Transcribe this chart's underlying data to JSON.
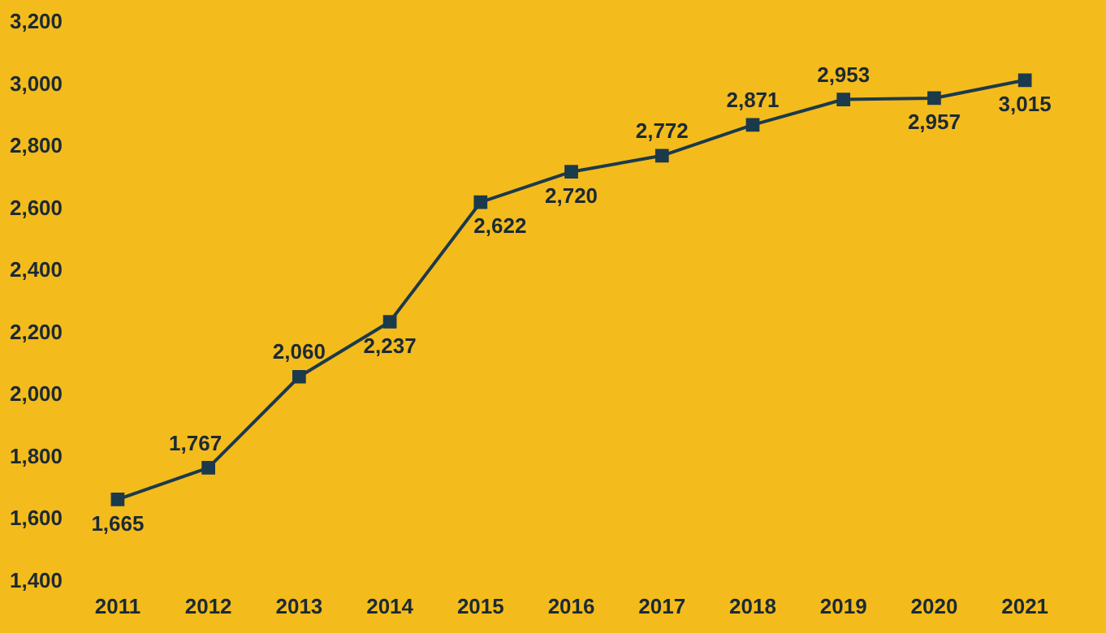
{
  "chart_data": {
    "type": "line",
    "categories": [
      "2011",
      "2012",
      "2013",
      "2014",
      "2015",
      "2016",
      "2017",
      "2018",
      "2019",
      "2020",
      "2021"
    ],
    "series": [
      {
        "color": "#1b3a4b",
        "values": [
          1665,
          1767,
          2060,
          2237,
          2622,
          2720,
          2772,
          2871,
          2953,
          2957,
          3015
        ],
        "value_labels": [
          "1,665",
          "1,767",
          "2,060",
          "2,237",
          "2,622",
          "2,720",
          "2,772",
          "2,871",
          "2,953",
          "2,957",
          "3,015"
        ]
      }
    ],
    "ylim": [
      1400,
      3200
    ],
    "yticks": [
      {
        "value": 1400,
        "label": "1,400"
      },
      {
        "value": 1600,
        "label": "1,600"
      },
      {
        "value": 1800,
        "label": "1,800"
      },
      {
        "value": 2000,
        "label": "2,000"
      },
      {
        "value": 2200,
        "label": "2,200"
      },
      {
        "value": 2400,
        "label": "2,400"
      },
      {
        "value": 2600,
        "label": "2,600"
      },
      {
        "value": 2800,
        "label": "2,800"
      },
      {
        "value": 3000,
        "label": "3,000"
      },
      {
        "value": 3200,
        "label": "3,200"
      }
    ],
    "grid": false,
    "legend": false,
    "marker": "square",
    "line_style": "solid"
  }
}
